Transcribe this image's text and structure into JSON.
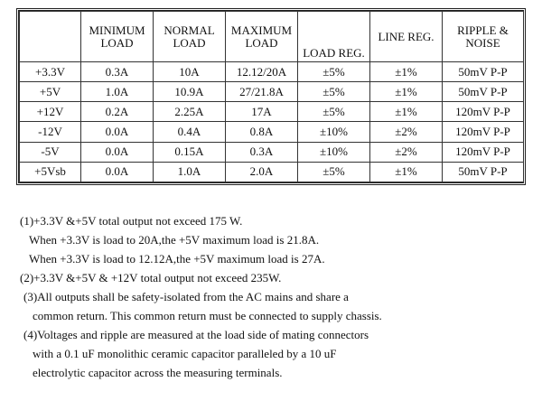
{
  "table": {
    "headers": [
      "",
      "MINIMUM LOAD",
      "NORMAL LOAD",
      "MAXIMUM LOAD",
      "LOAD REG.",
      "LINE REG.",
      "RIPPLE & NOISE"
    ],
    "rows": [
      [
        "+3.3V",
        "0.3A",
        "10A",
        "12.12/20A",
        "±5%",
        "±1%",
        "50mV P-P"
      ],
      [
        "+5V",
        "1.0A",
        "10.9A",
        "27/21.8A",
        "±5%",
        "±1%",
        "50mV P-P"
      ],
      [
        "+12V",
        "0.2A",
        "2.25A",
        "17A",
        "±5%",
        "±1%",
        "120mV P-P"
      ],
      [
        "-12V",
        "0.0A",
        "0.4A",
        "0.8A",
        "±10%",
        "±2%",
        "120mV P-P"
      ],
      [
        "-5V",
        "0.0A",
        "0.15A",
        "0.3A",
        "±10%",
        "±2%",
        "120mV P-P"
      ],
      [
        "+5Vsb",
        "0.0A",
        "1.0A",
        "2.0A",
        "±5%",
        "±1%",
        "50mV P-P"
      ]
    ]
  },
  "notes": [
    "(1)+3.3V &+5V total output not exceed 175 W.",
    "When +3.3V is load to 20A,the +5V maximum load is 21.8A.",
    "When +3.3V is load to 12.12A,the +5V maximum load is 27A.",
    "(2)+3.3V &+5V & +12V total output not exceed 235W.",
    "(3)All outputs shall be safety-isolated from the AC mains and share a",
    "common return. This common return must be connected to supply chassis.",
    "(4)Voltages and ripple are measured at the load side of mating connectors",
    "with a 0.1 uF monolithic ceramic capacitor paralleled by a 10 uF",
    "electrolytic capacitor across the measuring terminals."
  ]
}
